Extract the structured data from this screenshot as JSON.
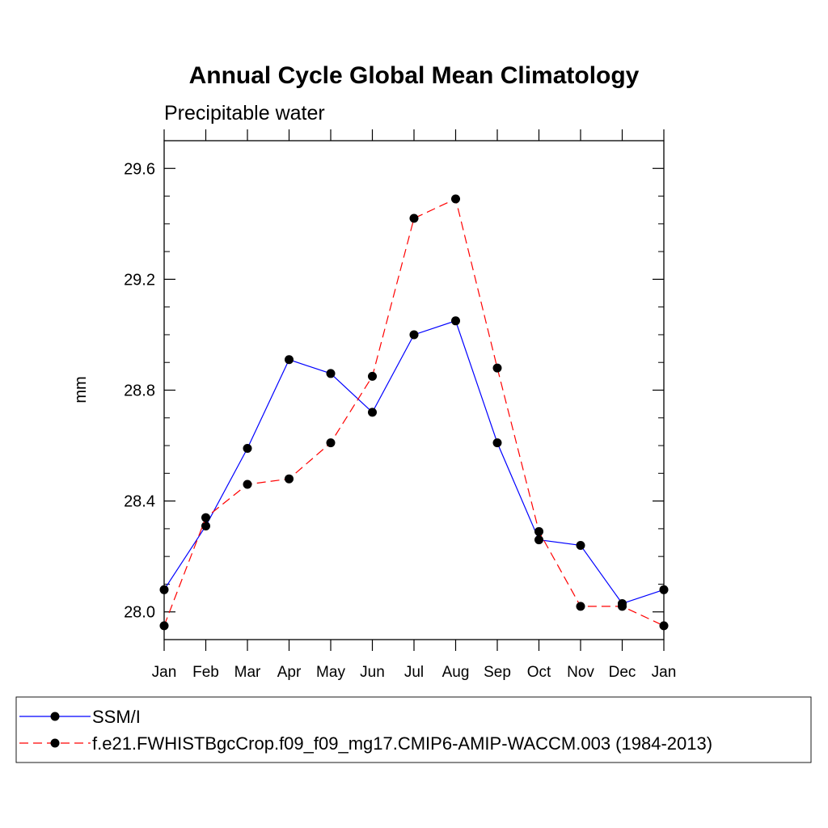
{
  "chart_data": {
    "type": "line",
    "title": "Annual Cycle Global Mean Climatology",
    "subtitle": "Precipitable water",
    "xlabel": "",
    "ylabel": "mm",
    "categories": [
      "Jan",
      "Feb",
      "Mar",
      "Apr",
      "May",
      "Jun",
      "Jul",
      "Aug",
      "Sep",
      "Oct",
      "Nov",
      "Dec",
      "Jan"
    ],
    "ylim": [
      27.9,
      29.7
    ],
    "yticks": [
      28.0,
      28.4,
      28.8,
      29.2,
      29.6
    ],
    "ytick_labels": [
      "28.0",
      "28.4",
      "28.8",
      "29.2",
      "29.6"
    ],
    "grid": false,
    "legend_position": "bottom",
    "series": [
      {
        "name": "SSM/I",
        "color": "#0000ff",
        "line_style": "solid",
        "values": [
          28.08,
          28.31,
          28.59,
          28.91,
          28.86,
          28.72,
          29.0,
          29.05,
          28.61,
          28.26,
          28.24,
          28.03,
          28.08
        ]
      },
      {
        "name": "f.e21.FWHISTBgcCrop.f09_f09_mg17.CMIP6-AMIP-WACCM.003 (1984-2013)",
        "color": "#ff0000",
        "line_style": "dashed",
        "values": [
          27.95,
          28.34,
          28.46,
          28.48,
          28.61,
          28.85,
          29.42,
          29.49,
          28.88,
          28.29,
          28.02,
          28.02,
          27.95
        ]
      }
    ]
  }
}
